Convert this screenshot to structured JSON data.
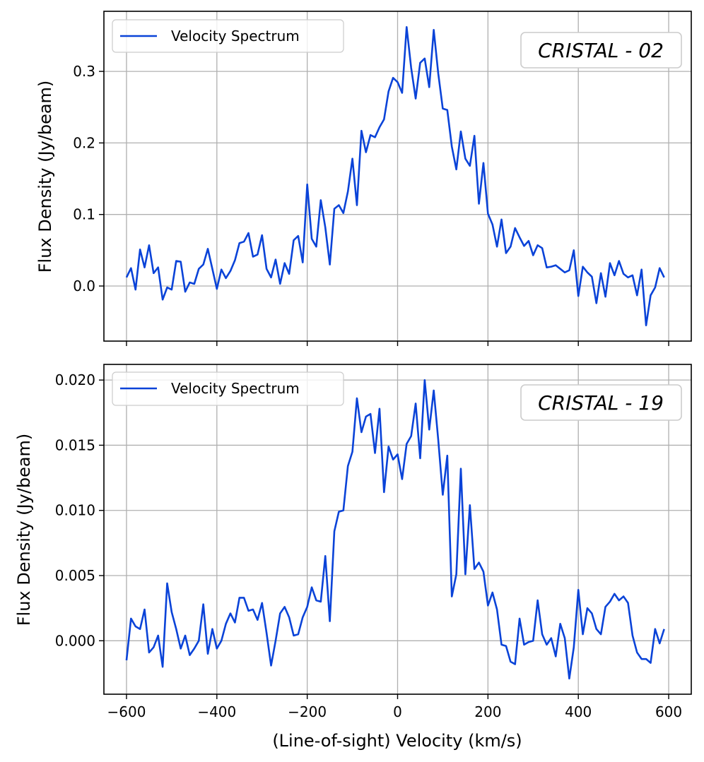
{
  "figure": {
    "xlabel": "(Line-of-sight) Velocity (km/s)",
    "line_color": "#0a43d8",
    "grid_color": "#b0b0b0"
  },
  "chart_data": [
    {
      "type": "line",
      "title": "",
      "annotation": "CRISTAL - 02",
      "xlabel": "",
      "ylabel": "Flux Density (Jy/beam)",
      "xlim": [
        -650,
        650
      ],
      "ylim": [
        -0.077,
        0.384
      ],
      "xticks": [
        -600,
        -400,
        -200,
        0,
        200,
        400,
        600
      ],
      "yticks": [
        0.0,
        0.1,
        0.2,
        0.3
      ],
      "ytick_labels": [
        "0.0",
        "0.1",
        "0.2",
        "0.3"
      ],
      "grid": true,
      "legend": "top-left",
      "series": [
        {
          "name": "Velocity Spectrum",
          "x": [
            -600,
            -590,
            -580,
            -570,
            -560,
            -550,
            -540,
            -530,
            -520,
            -510,
            -500,
            -490,
            -480,
            -470,
            -460,
            -450,
            -440,
            -430,
            -420,
            -410,
            -400,
            -390,
            -380,
            -370,
            -360,
            -350,
            -340,
            -330,
            -320,
            -310,
            -300,
            -290,
            -280,
            -270,
            -260,
            -250,
            -240,
            -230,
            -220,
            -210,
            -200,
            -190,
            -180,
            -170,
            -160,
            -150,
            -140,
            -130,
            -120,
            -110,
            -100,
            -90,
            -80,
            -70,
            -60,
            -50,
            -40,
            -30,
            -20,
            -10,
            0,
            10,
            20,
            30,
            40,
            50,
            60,
            70,
            80,
            90,
            100,
            110,
            120,
            130,
            140,
            150,
            160,
            170,
            180,
            190,
            200,
            210,
            220,
            230,
            240,
            250,
            260,
            270,
            280,
            290,
            300,
            310,
            320,
            330,
            340,
            350,
            360,
            370,
            380,
            390,
            400,
            410,
            420,
            430,
            440,
            450,
            460,
            470,
            480,
            490,
            500,
            510,
            520,
            530,
            540,
            550,
            560,
            570,
            580,
            590
          ],
          "values": [
            0.012,
            0.025,
            -0.005,
            0.051,
            0.026,
            0.057,
            0.018,
            0.026,
            -0.019,
            -0.002,
            -0.005,
            0.035,
            0.034,
            -0.008,
            0.005,
            0.003,
            0.024,
            0.03,
            0.052,
            0.024,
            -0.004,
            0.023,
            0.011,
            0.021,
            0.036,
            0.06,
            0.062,
            0.074,
            0.041,
            0.044,
            0.071,
            0.024,
            0.012,
            0.037,
            0.003,
            0.032,
            0.017,
            0.064,
            0.07,
            0.033,
            0.142,
            0.066,
            0.055,
            0.12,
            0.082,
            0.03,
            0.108,
            0.113,
            0.102,
            0.132,
            0.178,
            0.113,
            0.217,
            0.187,
            0.211,
            0.208,
            0.222,
            0.233,
            0.272,
            0.291,
            0.285,
            0.27,
            0.362,
            0.305,
            0.262,
            0.312,
            0.318,
            0.278,
            0.358,
            0.297,
            0.248,
            0.246,
            0.195,
            0.163,
            0.216,
            0.178,
            0.168,
            0.21,
            0.115,
            0.172,
            0.101,
            0.086,
            0.055,
            0.093,
            0.046,
            0.055,
            0.081,
            0.068,
            0.056,
            0.063,
            0.043,
            0.057,
            0.053,
            0.026,
            0.027,
            0.029,
            0.024,
            0.019,
            0.022,
            0.05,
            -0.014,
            0.027,
            0.019,
            0.013,
            -0.024,
            0.018,
            -0.015,
            0.032,
            0.015,
            0.035,
            0.017,
            0.012,
            0.015,
            -0.013,
            0.023,
            -0.055,
            -0.013,
            -0.002,
            0.025,
            0.012
          ]
        }
      ]
    },
    {
      "type": "line",
      "title": "",
      "annotation": "CRISTAL - 19",
      "xlabel": "(Line-of-sight) Velocity (km/s)",
      "ylabel": "Flux Density (Jy/beam)",
      "xlim": [
        -650,
        650
      ],
      "ylim": [
        -0.0041,
        0.0212
      ],
      "xticks": [
        -600,
        -400,
        -200,
        0,
        200,
        400,
        600
      ],
      "yticks": [
        0.0,
        0.005,
        0.01,
        0.015,
        0.02
      ],
      "ytick_labels": [
        "0.000",
        "0.005",
        "0.010",
        "0.015",
        "0.020"
      ],
      "grid": true,
      "legend": "top-left",
      "series": [
        {
          "name": "Velocity Spectrum",
          "x": [
            -600,
            -590,
            -580,
            -570,
            -560,
            -550,
            -540,
            -530,
            -520,
            -510,
            -500,
            -490,
            -480,
            -470,
            -460,
            -450,
            -440,
            -430,
            -420,
            -410,
            -400,
            -390,
            -380,
            -370,
            -360,
            -350,
            -340,
            -330,
            -320,
            -310,
            -300,
            -290,
            -280,
            -270,
            -260,
            -250,
            -240,
            -230,
            -220,
            -210,
            -200,
            -190,
            -180,
            -170,
            -160,
            -150,
            -140,
            -130,
            -120,
            -110,
            -100,
            -90,
            -80,
            -70,
            -60,
            -50,
            -40,
            -30,
            -20,
            -10,
            0,
            10,
            20,
            30,
            40,
            50,
            60,
            70,
            80,
            90,
            100,
            110,
            120,
            130,
            140,
            150,
            160,
            170,
            180,
            190,
            200,
            210,
            220,
            230,
            240,
            250,
            260,
            270,
            280,
            290,
            300,
            310,
            320,
            330,
            340,
            350,
            360,
            370,
            380,
            390,
            400,
            410,
            420,
            430,
            440,
            450,
            460,
            470,
            480,
            490,
            500,
            510,
            520,
            530,
            540,
            550,
            560,
            570,
            580,
            590
          ],
          "values": [
            -0.0015,
            0.0017,
            0.0011,
            0.0009,
            0.0024,
            -0.0009,
            -0.0005,
            0.0004,
            -0.002,
            0.0044,
            0.0022,
            0.0009,
            -0.0006,
            0.0004,
            -0.0011,
            -0.0006,
            0.0,
            0.0028,
            -0.001,
            0.0009,
            -0.0006,
            0.0,
            0.0013,
            0.0021,
            0.0014,
            0.0033,
            0.0033,
            0.0023,
            0.0024,
            0.0016,
            0.0029,
            0.0006,
            -0.0019,
            0.0,
            0.0021,
            0.0026,
            0.0018,
            0.0004,
            0.0005,
            0.0018,
            0.0026,
            0.0041,
            0.0031,
            0.003,
            0.0065,
            0.0015,
            0.0084,
            0.0099,
            0.01,
            0.0134,
            0.0145,
            0.0186,
            0.016,
            0.0172,
            0.0174,
            0.0144,
            0.0178,
            0.0114,
            0.0149,
            0.0139,
            0.0143,
            0.0124,
            0.0151,
            0.0157,
            0.0182,
            0.014,
            0.02,
            0.0162,
            0.0192,
            0.0154,
            0.0112,
            0.0142,
            0.0034,
            0.0051,
            0.0132,
            0.0051,
            0.0104,
            0.0055,
            0.006,
            0.0053,
            0.0027,
            0.0037,
            0.0024,
            -0.0003,
            -0.0004,
            -0.0016,
            -0.0018,
            0.0017,
            -0.0003,
            -0.0001,
            0.0,
            0.0031,
            0.0005,
            -0.0003,
            0.0002,
            -0.0012,
            0.0013,
            0.0002,
            -0.0029,
            -0.0005,
            0.0039,
            0.0005,
            0.0025,
            0.0021,
            0.0009,
            0.0005,
            0.0026,
            0.003,
            0.0036,
            0.0031,
            0.0034,
            0.0029,
            0.0004,
            -0.0009,
            -0.0014,
            -0.0014,
            -0.0017,
            0.0009,
            -0.0002,
            0.0009
          ]
        }
      ]
    }
  ]
}
